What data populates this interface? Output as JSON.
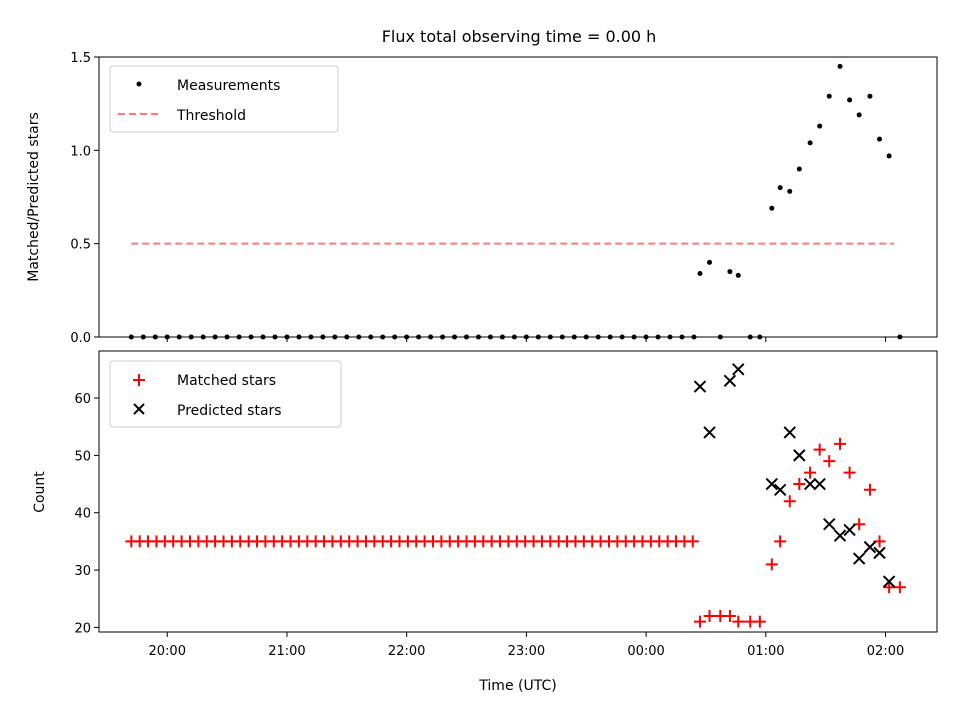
{
  "chart_data": [
    {
      "type": "scatter",
      "title": "Flux total observing time = 0.00 h",
      "xlabel": "",
      "ylabel": "Matched/Predicted stars",
      "ylim": [
        0,
        1.5
      ],
      "yticks": [
        "0.0",
        "0.5",
        "1.0",
        "1.5"
      ],
      "xlim_hours": [
        19.43,
        26.43
      ],
      "legend_position": "top-left",
      "series": [
        {
          "name": "Measurements",
          "marker": "dot",
          "color": "#000000",
          "x_hours": [
            19.7,
            19.8,
            19.9,
            20.0,
            20.1,
            20.2,
            20.3,
            20.4,
            20.5,
            20.6,
            20.7,
            20.8,
            20.9,
            21.0,
            21.1,
            21.2,
            21.3,
            21.4,
            21.5,
            21.6,
            21.7,
            21.8,
            21.9,
            22.0,
            22.1,
            22.2,
            22.3,
            22.4,
            22.5,
            22.6,
            22.7,
            22.8,
            22.9,
            23.0,
            23.1,
            23.2,
            23.3,
            23.4,
            23.5,
            23.6,
            23.7,
            23.8,
            23.9,
            24.0,
            24.1,
            24.2,
            24.3,
            24.4,
            24.45,
            24.53,
            24.62,
            24.7,
            24.77,
            24.87,
            24.95,
            25.05,
            25.12,
            25.2,
            25.28,
            25.37,
            25.45,
            25.53,
            25.62,
            25.7,
            25.78,
            25.87,
            25.95,
            26.03,
            26.12
          ],
          "y": [
            0,
            0,
            0,
            0,
            0,
            0,
            0,
            0,
            0,
            0,
            0,
            0,
            0,
            0,
            0,
            0,
            0,
            0,
            0,
            0,
            0,
            0,
            0,
            0,
            0,
            0,
            0,
            0,
            0,
            0,
            0,
            0,
            0,
            0,
            0,
            0,
            0,
            0,
            0,
            0,
            0,
            0,
            0,
            0,
            0,
            0,
            0,
            0,
            0.34,
            0.4,
            0.0,
            0.35,
            0.33,
            0.0,
            0.0,
            0.69,
            0.8,
            0.78,
            0.9,
            1.04,
            1.13,
            1.29,
            1.45,
            1.27,
            1.19,
            1.29,
            1.06,
            0.97,
            0.0
          ]
        },
        {
          "name": "Threshold",
          "marker": "dashed-line",
          "color": "#ff7777",
          "x_hours": [
            19.7,
            26.07
          ],
          "y": [
            0.5,
            0.5
          ]
        }
      ]
    },
    {
      "type": "scatter",
      "title": "",
      "xlabel": "Time (UTC)",
      "ylabel": "Count",
      "ylim": [
        19.2,
        68.2
      ],
      "yticks": [
        "20",
        "30",
        "40",
        "50",
        "60"
      ],
      "xlim_hours": [
        19.43,
        26.43
      ],
      "xticks": [
        "20:00",
        "21:00",
        "22:00",
        "23:00",
        "00:00",
        "01:00",
        "02:00"
      ],
      "legend_position": "top-left",
      "series": [
        {
          "name": "Matched stars",
          "marker": "plus",
          "color": "#ff0000",
          "x_hours": [
            19.7,
            19.77,
            19.84,
            19.91,
            19.98,
            20.05,
            20.12,
            20.19,
            20.26,
            20.33,
            20.4,
            20.47,
            20.54,
            20.61,
            20.68,
            20.75,
            20.82,
            20.89,
            20.96,
            21.03,
            21.1,
            21.17,
            21.24,
            21.31,
            21.38,
            21.45,
            21.52,
            21.59,
            21.66,
            21.73,
            21.8,
            21.87,
            21.94,
            22.01,
            22.08,
            22.15,
            22.22,
            22.29,
            22.36,
            22.43,
            22.5,
            22.57,
            22.64,
            22.71,
            22.78,
            22.85,
            22.92,
            22.99,
            23.06,
            23.13,
            23.2,
            23.27,
            23.34,
            23.41,
            23.48,
            23.55,
            23.62,
            23.69,
            23.76,
            23.83,
            23.9,
            23.97,
            24.04,
            24.11,
            24.18,
            24.25,
            24.32,
            24.39,
            24.45,
            24.53,
            24.62,
            24.7,
            24.77,
            24.87,
            24.95,
            25.05,
            25.12,
            25.2,
            25.28,
            25.37,
            25.45,
            25.53,
            25.62,
            25.7,
            25.78,
            25.87,
            25.95,
            26.03,
            26.12
          ],
          "y": [
            35,
            35,
            35,
            35,
            35,
            35,
            35,
            35,
            35,
            35,
            35,
            35,
            35,
            35,
            35,
            35,
            35,
            35,
            35,
            35,
            35,
            35,
            35,
            35,
            35,
            35,
            35,
            35,
            35,
            35,
            35,
            35,
            35,
            35,
            35,
            35,
            35,
            35,
            35,
            35,
            35,
            35,
            35,
            35,
            35,
            35,
            35,
            35,
            35,
            35,
            35,
            35,
            35,
            35,
            35,
            35,
            35,
            35,
            35,
            35,
            35,
            35,
            35,
            35,
            35,
            35,
            35,
            35,
            21,
            22,
            22,
            22,
            21,
            21,
            21,
            31,
            35,
            42,
            45,
            47,
            51,
            49,
            52,
            47,
            38,
            44,
            35,
            27,
            27
          ]
        },
        {
          "name": "Predicted stars",
          "marker": "x",
          "color": "#000000",
          "x_hours": [
            24.45,
            24.53,
            24.7,
            24.77,
            25.05,
            25.12,
            25.2,
            25.28,
            25.37,
            25.45,
            25.53,
            25.62,
            25.7,
            25.78,
            25.87,
            25.95,
            26.03
          ],
          "y": [
            62,
            54,
            63,
            65,
            45,
            44,
            54,
            50,
            45,
            45,
            38,
            36,
            37,
            32,
            34,
            33,
            28
          ]
        }
      ]
    }
  ]
}
